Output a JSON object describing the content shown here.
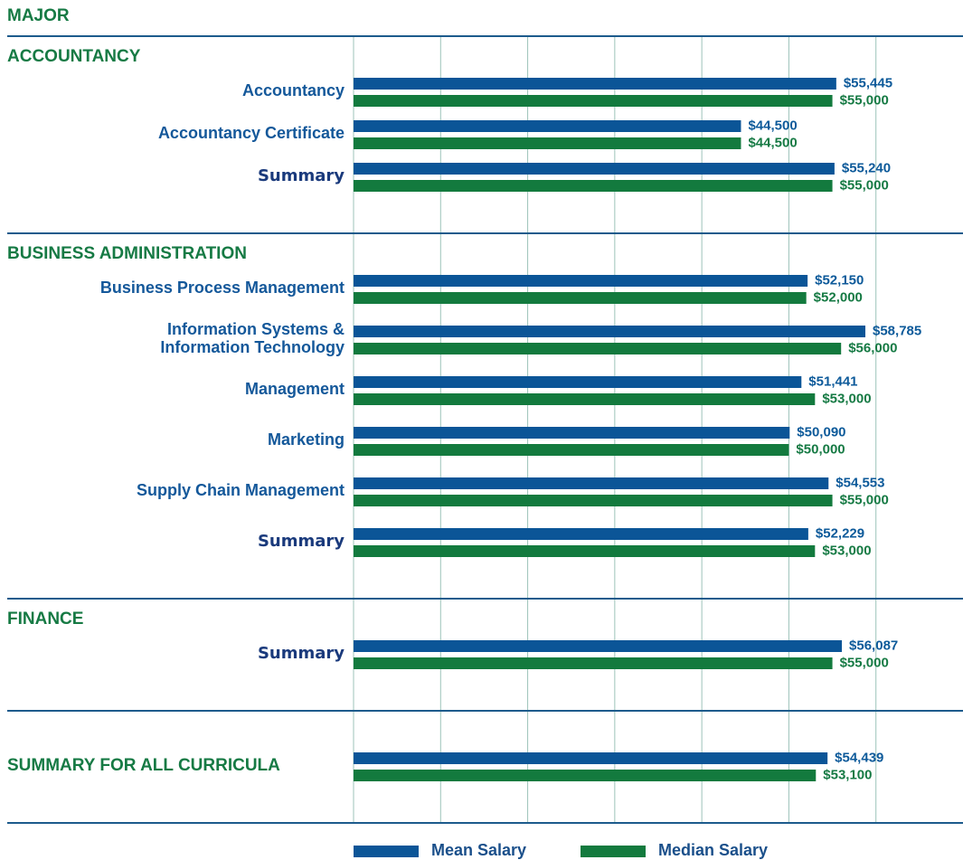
{
  "chart_data": {
    "type": "bar",
    "orientation": "horizontal",
    "header": "MAJOR",
    "xlim": [
      0,
      70000
    ],
    "xticks": [
      0,
      10000,
      20000,
      30000,
      40000,
      50000,
      60000
    ],
    "grid": true,
    "legend": "bottom",
    "series": [
      {
        "name": "Mean Salary",
        "color": "#0b5597"
      },
      {
        "name": "Median Salary",
        "color": "#137a3e"
      }
    ],
    "sections": [
      {
        "title": "ACCOUNTANCY",
        "rows": [
          {
            "label": "Accountancy",
            "values": [
              55445,
              55000
            ],
            "value_labels": [
              "$55,445",
              "$55,000"
            ]
          },
          {
            "label": "Accountancy Certificate",
            "values": [
              44500,
              44500
            ],
            "value_labels": [
              "$44,500",
              "$44,500"
            ]
          },
          {
            "label": "Summary",
            "summary": true,
            "values": [
              55240,
              55000
            ],
            "value_labels": [
              "$55,240",
              "$55,000"
            ]
          }
        ]
      },
      {
        "title": "BUSINESS ADMINISTRATION",
        "rows": [
          {
            "label": "Business Process Management",
            "values": [
              52150,
              52000
            ],
            "value_labels": [
              "$52,150",
              "$52,000"
            ]
          },
          {
            "label": [
              "Information Systems &",
              "Information Technology"
            ],
            "values": [
              58785,
              56000
            ],
            "value_labels": [
              "$58,785",
              "$56,000"
            ]
          },
          {
            "label": "Management",
            "values": [
              51441,
              53000
            ],
            "value_labels": [
              "$51,441",
              "$53,000"
            ]
          },
          {
            "label": "Marketing",
            "values": [
              50090,
              50000
            ],
            "value_labels": [
              "$50,090",
              "$50,000"
            ]
          },
          {
            "label": "Supply Chain Management",
            "values": [
              54553,
              55000
            ],
            "value_labels": [
              "$54,553",
              "$55,000"
            ]
          },
          {
            "label": "Summary",
            "summary": true,
            "values": [
              52229,
              53000
            ],
            "value_labels": [
              "$52,229",
              "$53,000"
            ]
          }
        ]
      },
      {
        "title": "FINANCE",
        "rows": [
          {
            "label": "Summary",
            "summary": true,
            "values": [
              56087,
              55000
            ],
            "value_labels": [
              "$56,087",
              "$55,000"
            ]
          }
        ]
      },
      {
        "title": "SUMMARY FOR ALL CURRICULA",
        "rows": [
          {
            "label": null,
            "values": [
              54439,
              53100
            ],
            "value_labels": [
              "$54,439",
              "$53,100"
            ]
          }
        ]
      }
    ]
  }
}
